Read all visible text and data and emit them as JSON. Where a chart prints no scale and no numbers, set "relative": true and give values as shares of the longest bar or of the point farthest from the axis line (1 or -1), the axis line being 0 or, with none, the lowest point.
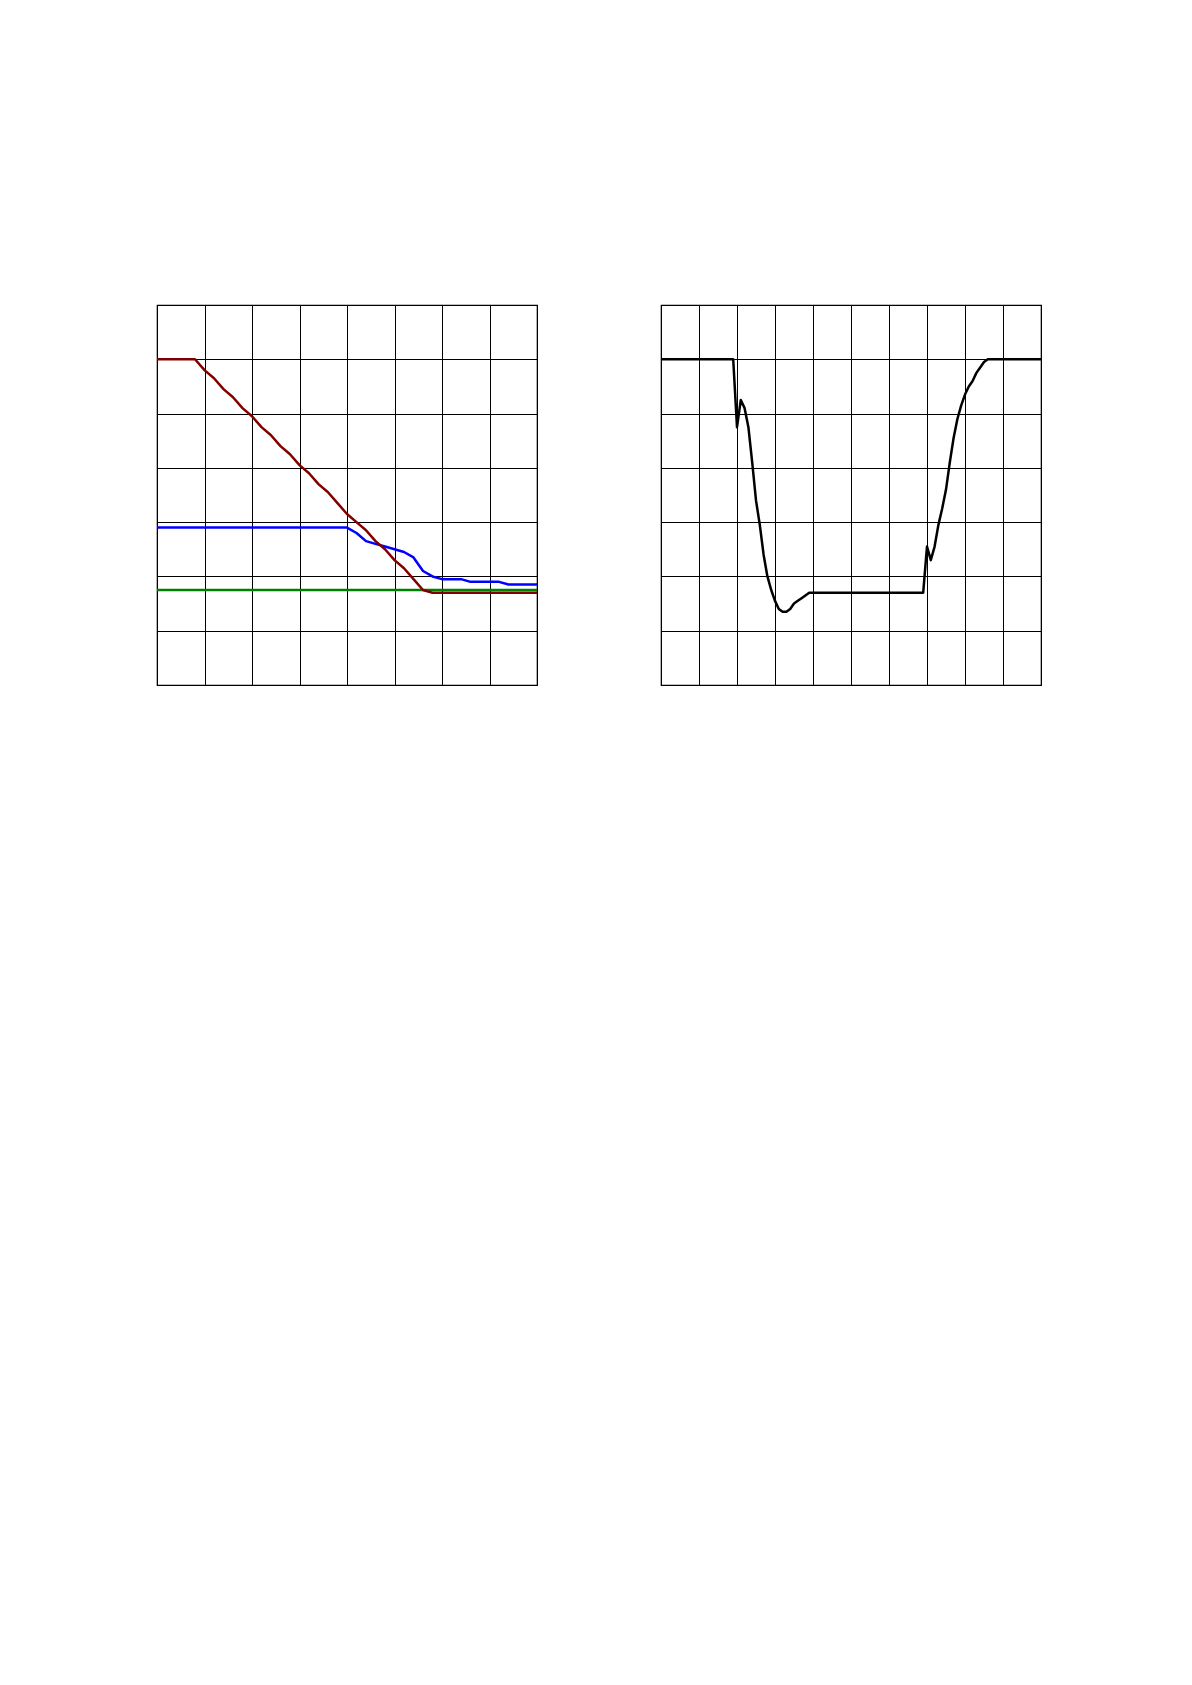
{
  "chart_data": [
    {
      "type": "line",
      "relative": true,
      "grid": true,
      "categories": [
        null,
        null,
        null,
        null,
        null,
        null,
        null,
        null,
        null,
        null,
        null,
        null,
        null,
        null,
        null,
        null,
        null,
        null,
        null,
        null,
        null,
        null,
        null,
        null,
        null,
        null,
        null,
        null,
        null,
        null,
        null,
        null,
        null,
        null,
        null,
        null,
        null,
        null,
        null,
        null,
        null
      ],
      "series": [
        {
          "color": "#008000",
          "values": [
            0.15,
            0.15,
            0.15,
            0.15,
            0.15,
            0.15,
            0.15,
            0.15,
            0.15,
            0.15,
            0.15,
            0.15,
            0.15,
            0.15,
            0.15,
            0.15,
            0.15,
            0.15,
            0.15,
            0.15,
            0.15,
            0.15,
            0.15,
            0.15,
            0.15,
            0.15,
            0.15,
            0.15,
            0.15,
            0.15,
            0.15,
            0.15,
            0.15,
            0.15,
            0.15,
            0.15,
            0.15,
            0.15,
            0.15,
            0.15,
            0.15
          ]
        },
        {
          "color": "#0000ff",
          "values": [
            0.38,
            0.38,
            0.38,
            0.38,
            0.38,
            0.38,
            0.38,
            0.38,
            0.38,
            0.38,
            0.38,
            0.38,
            0.38,
            0.38,
            0.38,
            0.38,
            0.38,
            0.38,
            0.38,
            0.38,
            0.38,
            0.36,
            0.33,
            0.32,
            0.31,
            0.3,
            0.29,
            0.27,
            0.22,
            0.2,
            0.19,
            0.19,
            0.19,
            0.18,
            0.18,
            0.18,
            0.18,
            0.17,
            0.17,
            0.17,
            0.17
          ]
        },
        {
          "color": "#800000",
          "values": [
            1.0,
            1.0,
            1.0,
            1.0,
            1.0,
            0.96,
            0.93,
            0.89,
            0.86,
            0.82,
            0.79,
            0.75,
            0.72,
            0.68,
            0.65,
            0.61,
            0.58,
            0.54,
            0.51,
            0.47,
            0.43,
            0.4,
            0.37,
            0.33,
            0.3,
            0.26,
            0.23,
            0.19,
            0.15,
            0.14,
            0.14,
            0.14,
            0.14,
            0.14,
            0.14,
            0.14,
            0.14,
            0.14,
            0.14,
            0.14,
            0.14
          ]
        }
      ]
    },
    {
      "type": "line",
      "relative": true,
      "grid": true,
      "categories": [
        null,
        null,
        null,
        null,
        null,
        null,
        null,
        null,
        null,
        null,
        null,
        null,
        null,
        null,
        null,
        null,
        null,
        null,
        null,
        null,
        null,
        null,
        null,
        null,
        null,
        null,
        null,
        null,
        null,
        null,
        null,
        null,
        null,
        null,
        null,
        null,
        null,
        null,
        null,
        null,
        null,
        null,
        null,
        null,
        null,
        null,
        null,
        null,
        null,
        null,
        null,
        null,
        null,
        null,
        null,
        null,
        null,
        null,
        null,
        null,
        null,
        null,
        null,
        null,
        null,
        null,
        null,
        null,
        null,
        null,
        null,
        null,
        null,
        null,
        null,
        null,
        null,
        null,
        null,
        null,
        null,
        null,
        null,
        null,
        null,
        null,
        null,
        null,
        null,
        null,
        null,
        null,
        null,
        null,
        null,
        null,
        null,
        null,
        null,
        null,
        null
      ],
      "series": [
        {
          "color": "#000000",
          "values": [
            1.0,
            1.0,
            1.0,
            1.0,
            1.0,
            1.0,
            1.0,
            1.0,
            1.0,
            1.0,
            1.0,
            1.0,
            1.0,
            1.0,
            1.0,
            1.0,
            1.0,
            1.0,
            1.0,
            1.0,
            0.75,
            0.85,
            0.82,
            0.75,
            0.62,
            0.48,
            0.39,
            0.28,
            0.2,
            0.15,
            0.11,
            0.08,
            0.07,
            0.07,
            0.08,
            0.1,
            0.11,
            0.12,
            0.13,
            0.14,
            0.14,
            0.14,
            0.14,
            0.14,
            0.14,
            0.14,
            0.14,
            0.14,
            0.14,
            0.14,
            0.14,
            0.14,
            0.14,
            0.14,
            0.14,
            0.14,
            0.14,
            0.14,
            0.14,
            0.14,
            0.14,
            0.14,
            0.14,
            0.14,
            0.14,
            0.14,
            0.14,
            0.14,
            0.14,
            0.14,
            0.31,
            0.26,
            0.31,
            0.39,
            0.45,
            0.52,
            0.62,
            0.71,
            0.78,
            0.83,
            0.87,
            0.9,
            0.92,
            0.95,
            0.97,
            0.99,
            1.0,
            1.0,
            1.0,
            1.0,
            1.0,
            1.0,
            1.0,
            1.0,
            1.0,
            1.0,
            1.0,
            1.0,
            1.0,
            1.0,
            1.0
          ]
        }
      ]
    }
  ]
}
